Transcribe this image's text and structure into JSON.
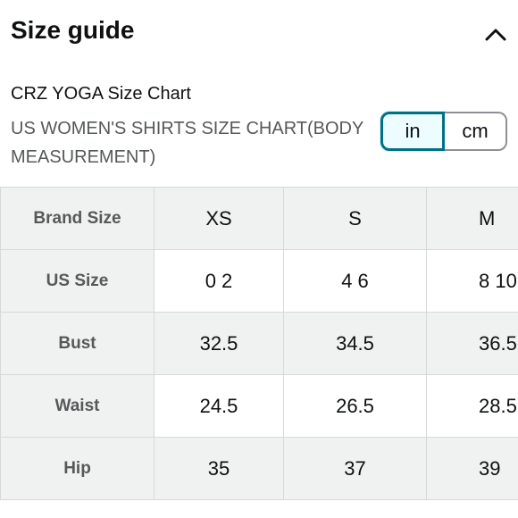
{
  "header": {
    "title": "Size guide",
    "collapse_icon": "chevron-up-icon"
  },
  "chart": {
    "title": "CRZ YOGA Size Chart",
    "subtitle": "US WOMEN'S SHIRTS SIZE CHART(BODY MEASUREMENT)"
  },
  "units": {
    "options": [
      "in",
      "cm"
    ],
    "selected": "in"
  },
  "table": {
    "rows": [
      {
        "label": "Brand Size",
        "values": [
          "XS",
          "S",
          "M"
        ]
      },
      {
        "label": "US Size",
        "values": [
          "0 2",
          "4 6",
          "8 10"
        ]
      },
      {
        "label": "Bust",
        "values": [
          "32.5",
          "34.5",
          "36.5"
        ]
      },
      {
        "label": "Waist",
        "values": [
          "24.5",
          "26.5",
          "28.5"
        ]
      },
      {
        "label": "Hip",
        "values": [
          "35",
          "37",
          "39"
        ]
      }
    ]
  },
  "colors": {
    "accent": "#007185",
    "selected_bg": "#edfdff",
    "shaded_row": "#f0f2f2",
    "border": "#d5d9d9",
    "muted_text": "#565959"
  }
}
